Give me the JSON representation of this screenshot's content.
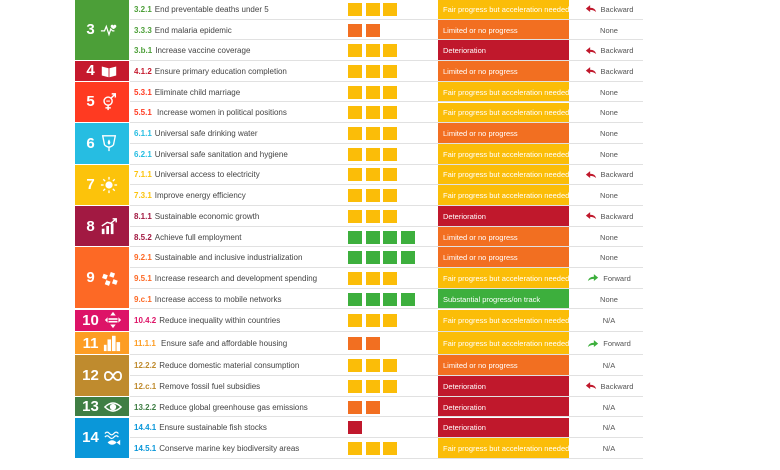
{
  "colors": {
    "green": "#3daf3d",
    "yellow": "#fbbd08",
    "orange": "#f26f21",
    "red": "#c0182c",
    "arrow_back": "#c0182c",
    "arrow_forward": "#3daf3d"
  },
  "goals": [
    {
      "number": "3",
      "icon": "heartbeat-icon",
      "color": "#4c9f38",
      "span": 3
    },
    {
      "number": "4",
      "icon": "book-icon",
      "color": "#c5192d",
      "span": 1
    },
    {
      "number": "5",
      "icon": "gender-equality-icon",
      "color": "#ff3a21",
      "span": 2
    },
    {
      "number": "6",
      "icon": "water-drop-icon",
      "color": "#26bde2",
      "span": 2
    },
    {
      "number": "7",
      "icon": "sun-icon",
      "color": "#fcc30b",
      "span": 2
    },
    {
      "number": "8",
      "icon": "growth-chart-icon",
      "color": "#a21942",
      "span": 2
    },
    {
      "number": "9",
      "icon": "industry-cubes-icon",
      "color": "#fd6925",
      "span": 3
    },
    {
      "number": "10",
      "icon": "inequality-arrows-icon",
      "color": "#dd1367",
      "span": 1
    },
    {
      "number": "11",
      "icon": "city-buildings-icon",
      "color": "#fd9d24",
      "span": 1
    },
    {
      "number": "12",
      "icon": "infinity-icon",
      "color": "#bf8b2e",
      "span": 2
    },
    {
      "number": "13",
      "icon": "eye-globe-icon",
      "color": "#3f7e44",
      "span": 1
    },
    {
      "number": "14",
      "icon": "fish-waves-icon",
      "color": "#0a97d9",
      "span": 2
    }
  ],
  "rows": [
    {
      "code": "3.2.1",
      "label": "End preventable deaths under 5",
      "squares": {
        "count": 3,
        "color": "yellow"
      },
      "status": "Fair progress but acceleration needed",
      "status_color": "yellow",
      "trend": "Backward",
      "trend_dir": "backward"
    },
    {
      "code": "3.3.3",
      "label": "End malaria epidemic",
      "squares": {
        "count": 2,
        "color": "orange"
      },
      "status": "Limited or no progress",
      "status_color": "orange",
      "trend": "None",
      "trend_dir": ""
    },
    {
      "code": "3.b.1",
      "label": "Increase vaccine coverage",
      "squares": {
        "count": 3,
        "color": "yellow"
      },
      "status": "Deterioration",
      "status_color": "red",
      "trend": "Backward",
      "trend_dir": "backward"
    },
    {
      "code": "4.1.2",
      "label": "Ensure primary education completion",
      "squares": {
        "count": 3,
        "color": "yellow"
      },
      "status": "Limited or no progress",
      "status_color": "orange",
      "trend": "Backward",
      "trend_dir": "backward"
    },
    {
      "code": "5.3.1",
      "label": "Eliminate child marriage",
      "squares": {
        "count": 3,
        "color": "yellow"
      },
      "status": "Fair progress but acceleration needed",
      "status_color": "yellow",
      "trend": "None",
      "trend_dir": ""
    },
    {
      "code": "5.5.1",
      "label": " Increase women in political positions",
      "squares": {
        "count": 3,
        "color": "yellow"
      },
      "status": "Fair progress but acceleration needed",
      "status_color": "yellow",
      "trend": "None",
      "trend_dir": ""
    },
    {
      "code": "6.1.1",
      "label": "Universal safe drinking water",
      "squares": {
        "count": 3,
        "color": "yellow"
      },
      "status": "Limited or no progress",
      "status_color": "orange",
      "trend": "None",
      "trend_dir": ""
    },
    {
      "code": "6.2.1",
      "label": "Universal safe sanitation and hygiene",
      "squares": {
        "count": 3,
        "color": "yellow"
      },
      "status": "Fair progress but acceleration needed",
      "status_color": "yellow",
      "trend": "None",
      "trend_dir": ""
    },
    {
      "code": "7.1.1",
      "label": "Universal access to electricity",
      "squares": {
        "count": 3,
        "color": "yellow"
      },
      "status": "Fair progress but acceleration needed",
      "status_color": "yellow",
      "trend": "Backward",
      "trend_dir": "backward"
    },
    {
      "code": "7.3.1",
      "label": "Improve energy efficiency",
      "squares": {
        "count": 3,
        "color": "yellow"
      },
      "status": "Fair progress but acceleration needed",
      "status_color": "yellow",
      "trend": "None",
      "trend_dir": ""
    },
    {
      "code": "8.1.1",
      "label": "Sustainable economic growth",
      "squares": {
        "count": 3,
        "color": "yellow"
      },
      "status": "Deterioration",
      "status_color": "red",
      "trend": "Backward",
      "trend_dir": "backward"
    },
    {
      "code": "8.5.2",
      "label": "Achieve full employment",
      "squares": {
        "count": 4,
        "color": "green"
      },
      "status": "Limited or no progress",
      "status_color": "orange",
      "trend": "None",
      "trend_dir": ""
    },
    {
      "code": "9.2.1",
      "label": "Sustainable and inclusive industrialization",
      "squares": {
        "count": 4,
        "color": "green"
      },
      "status": "Limited or no progress",
      "status_color": "orange",
      "trend": "None",
      "trend_dir": ""
    },
    {
      "code": "9.5.1",
      "label": "Increase research and development spending",
      "squares": {
        "count": 3,
        "color": "yellow"
      },
      "status": "Fair progress but acceleration needed",
      "status_color": "yellow",
      "trend": "Forward",
      "trend_dir": "forward"
    },
    {
      "code": "9.c.1",
      "label": "Increase access to mobile networks",
      "squares": {
        "count": 4,
        "color": "green"
      },
      "status": "Substantial progress/on track",
      "status_color": "green",
      "trend": "None",
      "trend_dir": ""
    },
    {
      "code": "10.4.2",
      "label": "Reduce inequality within countries",
      "squares": {
        "count": 3,
        "color": "yellow"
      },
      "status": "Fair progress but acceleration needed",
      "status_color": "yellow",
      "trend": "N/A",
      "trend_dir": ""
    },
    {
      "code": "11.1.1",
      "label": " Ensure safe and affordable housing",
      "squares": {
        "count": 2,
        "color": "orange"
      },
      "status": "Fair progress but acceleration needed",
      "status_color": "yellow",
      "trend": "Forward",
      "trend_dir": "forward"
    },
    {
      "code": "12.2.2",
      "label": "Reduce domestic material consumption",
      "squares": {
        "count": 3,
        "color": "yellow"
      },
      "status": "Limited or no progress",
      "status_color": "orange",
      "trend": "N/A",
      "trend_dir": ""
    },
    {
      "code": "12.c.1",
      "label": "Remove fossil fuel subsidies",
      "squares": {
        "count": 3,
        "color": "yellow"
      },
      "status": "Deterioration",
      "status_color": "red",
      "trend": "Backward",
      "trend_dir": "backward"
    },
    {
      "code": "13.2.2",
      "label": "Reduce global greenhouse gas emissions",
      "squares": {
        "count": 2,
        "color": "orange"
      },
      "status": "Deterioration",
      "status_color": "red",
      "trend": "N/A",
      "trend_dir": ""
    },
    {
      "code": "14.4.1",
      "label": "Ensure sustainable fish stocks",
      "squares": {
        "count": 1,
        "color": "red"
      },
      "status": "Deterioration",
      "status_color": "red",
      "trend": "N/A",
      "trend_dir": ""
    },
    {
      "code": "14.5.1",
      "label": "Conserve marine key biodiversity areas",
      "squares": {
        "count": 3,
        "color": "yellow"
      },
      "status": "Fair progress but acceleration needed",
      "status_color": "yellow",
      "trend": "N/A",
      "trend_dir": ""
    }
  ]
}
